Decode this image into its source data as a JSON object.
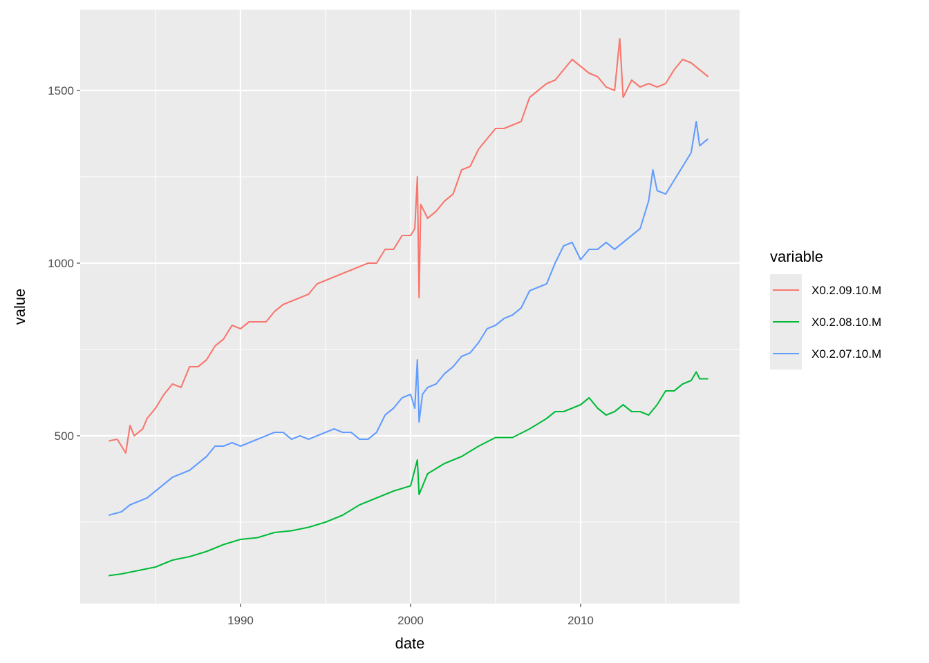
{
  "chart_data": {
    "type": "line",
    "title": "",
    "xlabel": "date",
    "ylabel": "value",
    "xlim": [
      1980.57,
      2019.35
    ],
    "ylim": [
      14,
      1734
    ],
    "x_ticks": [
      1990,
      2000,
      2010
    ],
    "x_tick_labels": [
      "1990",
      "2000",
      "2010"
    ],
    "y_ticks": [
      500,
      1000,
      1500
    ],
    "y_tick_labels": [
      "500",
      "1000",
      "1500"
    ],
    "grid": true,
    "legend": {
      "title": "variable",
      "placement": "right"
    },
    "series": [
      {
        "name": "X0.2.09.10.M",
        "color": "#F8766D",
        "x": [
          1982.25,
          1982.75,
          1983.25,
          1983.5,
          1983.75,
          1984.25,
          1984.5,
          1985,
          1985.5,
          1986,
          1986.5,
          1987,
          1987.5,
          1988,
          1988.5,
          1989,
          1989.5,
          1990,
          1990.5,
          1991,
          1991.5,
          1992,
          1992.5,
          1993,
          1993.5,
          1994,
          1994.5,
          1995,
          1995.5,
          1996,
          1996.5,
          1997,
          1997.5,
          1998,
          1998.5,
          1999,
          1999.5,
          2000,
          2000.25,
          2000.4,
          2000.5,
          2000.6,
          2001,
          2001.5,
          2002,
          2002.5,
          2003,
          2003.5,
          2004,
          2004.5,
          2005,
          2005.5,
          2006,
          2006.5,
          2007,
          2007.5,
          2008,
          2008.5,
          2009,
          2009.5,
          2010,
          2010.5,
          2011,
          2011.5,
          2012,
          2012.3,
          2012.5,
          2013,
          2013.5,
          2014,
          2014.5,
          2015,
          2015.5,
          2016,
          2016.5,
          2017,
          2017.5
        ],
        "y": [
          485,
          490,
          450,
          530,
          500,
          520,
          550,
          580,
          620,
          650,
          640,
          700,
          700,
          720,
          760,
          780,
          820,
          810,
          830,
          830,
          830,
          860,
          880,
          890,
          900,
          910,
          940,
          950,
          960,
          970,
          980,
          990,
          1000,
          1000,
          1040,
          1040,
          1080,
          1080,
          1100,
          1250,
          900,
          1170,
          1130,
          1150,
          1180,
          1200,
          1270,
          1280,
          1330,
          1360,
          1390,
          1390,
          1400,
          1410,
          1480,
          1500,
          1520,
          1530,
          1560,
          1590,
          1570,
          1550,
          1540,
          1510,
          1500,
          1650,
          1480,
          1530,
          1510,
          1520,
          1510,
          1520,
          1560,
          1590,
          1580,
          1560,
          1540
        ]
      },
      {
        "name": "X0.2.08.10.M",
        "color": "#00BA38",
        "x": [
          1982.25,
          1983,
          1984,
          1985,
          1986,
          1987,
          1988,
          1989,
          1990,
          1991,
          1992,
          1993,
          1994,
          1995,
          1996,
          1997,
          1998,
          1999,
          2000,
          2000.4,
          2000.5,
          2001,
          2002,
          2003,
          2004,
          2005,
          2006,
          2007,
          2008,
          2008.5,
          2009,
          2009.5,
          2010,
          2010.5,
          2011,
          2011.5,
          2012,
          2012.5,
          2013,
          2013.5,
          2014,
          2014.5,
          2015,
          2015.5,
          2016,
          2016.5,
          2016.8,
          2017,
          2017.5
        ],
        "y": [
          95,
          100,
          110,
          120,
          140,
          150,
          165,
          185,
          200,
          205,
          220,
          225,
          235,
          250,
          270,
          300,
          320,
          340,
          355,
          430,
          330,
          390,
          420,
          440,
          470,
          495,
          495,
          520,
          550,
          570,
          570,
          580,
          590,
          610,
          580,
          560,
          570,
          590,
          570,
          570,
          560,
          590,
          630,
          630,
          650,
          660,
          685,
          665,
          665
        ]
      },
      {
        "name": "X0.2.07.10.M",
        "color": "#619CFF",
        "x": [
          1982.25,
          1983,
          1983.5,
          1984,
          1984.5,
          1985,
          1985.5,
          1986,
          1986.5,
          1987,
          1987.5,
          1988,
          1988.5,
          1989,
          1989.5,
          1990,
          1990.5,
          1991,
          1991.5,
          1992,
          1992.5,
          1993,
          1993.5,
          1994,
          1994.5,
          1995,
          1995.5,
          1996,
          1996.5,
          1997,
          1997.5,
          1998,
          1998.5,
          1999,
          1999.5,
          2000,
          2000.25,
          2000.4,
          2000.5,
          2000.7,
          2001,
          2001.5,
          2002,
          2002.5,
          2003,
          2003.5,
          2004,
          2004.5,
          2005,
          2005.5,
          2006,
          2006.5,
          2007,
          2007.5,
          2008,
          2008.5,
          2009,
          2009.5,
          2010,
          2010.5,
          2011,
          2011.5,
          2012,
          2012.5,
          2013,
          2013.5,
          2014,
          2014.25,
          2014.5,
          2015,
          2015.5,
          2016,
          2016.5,
          2016.8,
          2017,
          2017.5
        ],
        "y": [
          270,
          280,
          300,
          310,
          320,
          340,
          360,
          380,
          390,
          400,
          420,
          440,
          470,
          470,
          480,
          470,
          480,
          490,
          500,
          510,
          510,
          490,
          500,
          490,
          500,
          510,
          520,
          510,
          510,
          490,
          490,
          510,
          560,
          580,
          610,
          620,
          580,
          720,
          540,
          620,
          640,
          650,
          680,
          700,
          730,
          740,
          770,
          810,
          820,
          840,
          850,
          870,
          920,
          930,
          940,
          1000,
          1050,
          1060,
          1010,
          1040,
          1040,
          1060,
          1040,
          1060,
          1080,
          1100,
          1180,
          1270,
          1210,
          1200,
          1240,
          1280,
          1320,
          1410,
          1340,
          1360
        ]
      }
    ]
  }
}
